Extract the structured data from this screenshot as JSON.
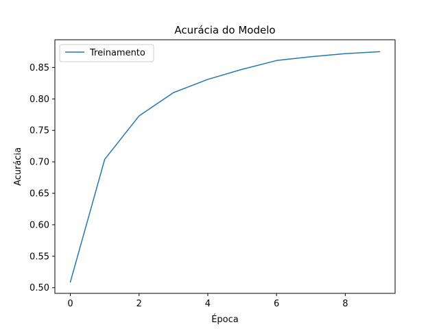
{
  "chart_data": {
    "type": "line",
    "title": "Acurácia do Modelo",
    "xlabel": "Época",
    "ylabel": "Acurácia",
    "xlim": [
      -0.45,
      9.45
    ],
    "ylim": [
      0.491,
      0.894
    ],
    "x_ticks": [
      0,
      2,
      4,
      6,
      8
    ],
    "x_tick_labels": [
      "0",
      "2",
      "4",
      "6",
      "8"
    ],
    "y_ticks": [
      0.5,
      0.55,
      0.6,
      0.65,
      0.7,
      0.75,
      0.8,
      0.85
    ],
    "y_tick_labels": [
      "0.50",
      "0.55",
      "0.60",
      "0.65",
      "0.70",
      "0.75",
      "0.80",
      "0.85"
    ],
    "grid": false,
    "legend": {
      "position": "upper-left"
    },
    "series": [
      {
        "name": "Treinamento",
        "color": "#1f77b4",
        "x": [
          0,
          1,
          2,
          3,
          4,
          5,
          6,
          7,
          8,
          9
        ],
        "y": [
          0.509,
          0.704,
          0.773,
          0.81,
          0.831,
          0.847,
          0.861,
          0.867,
          0.872,
          0.875
        ]
      }
    ]
  }
}
